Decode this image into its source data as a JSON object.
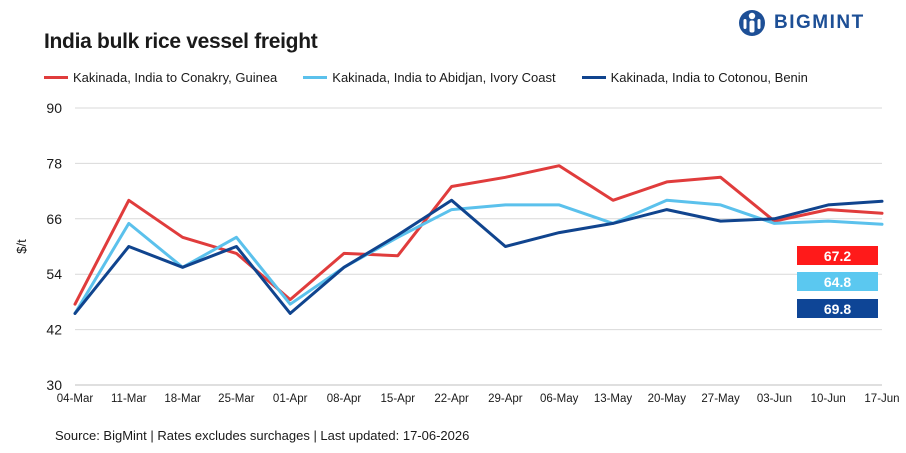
{
  "title": "India bulk rice vessel freight",
  "brand": {
    "name": "BIGMINT",
    "icon": "bigmint-logo-icon",
    "color": "#1d4f96"
  },
  "source": "Source: BigMint  | Rates excludes surchages | Last updated: 17-06-2026",
  "chart_data": {
    "type": "line",
    "ylabel": "$/t",
    "xlabel": "",
    "ylim": [
      30,
      90
    ],
    "yticks": [
      30,
      42,
      54,
      66,
      78,
      90
    ],
    "grid": true,
    "legend_position": "top",
    "categories": [
      "04-Mar",
      "11-Mar",
      "18-Mar",
      "25-Mar",
      "01-Apr",
      "08-Apr",
      "15-Apr",
      "22-Apr",
      "29-Apr",
      "06-May",
      "13-May",
      "20-May",
      "27-May",
      "03-Jun",
      "10-Jun",
      "17-Jun"
    ],
    "series": [
      {
        "name": "Kakinada, India to Conakry, Guinea",
        "color": "#e03c3c",
        "label_color": "#ff1a1a",
        "values": [
          47.5,
          70.0,
          62.0,
          58.5,
          48.5,
          58.5,
          58.0,
          73.0,
          75.0,
          77.5,
          70.0,
          74.0,
          75.0,
          65.5,
          68.0,
          67.2
        ],
        "last_label": "67.2"
      },
      {
        "name": "Kakinada, India to Abidjan, Ivory Coast",
        "color": "#5bc1ec",
        "label_color": "#5bc8f0",
        "values": [
          45.5,
          65.0,
          55.5,
          62.0,
          47.5,
          55.5,
          62.0,
          68.0,
          69.0,
          69.0,
          65.0,
          70.0,
          69.0,
          65.0,
          65.5,
          64.8
        ],
        "last_label": "64.8"
      },
      {
        "name": "Kakinada, India to Cotonou, Benin",
        "color": "#10448e",
        "label_color": "#0e4596",
        "values": [
          45.5,
          60.0,
          55.5,
          60.0,
          45.5,
          55.5,
          62.5,
          70.0,
          60.0,
          63.0,
          65.0,
          68.0,
          65.5,
          66.0,
          69.0,
          69.8
        ],
        "last_label": "69.8"
      }
    ]
  }
}
